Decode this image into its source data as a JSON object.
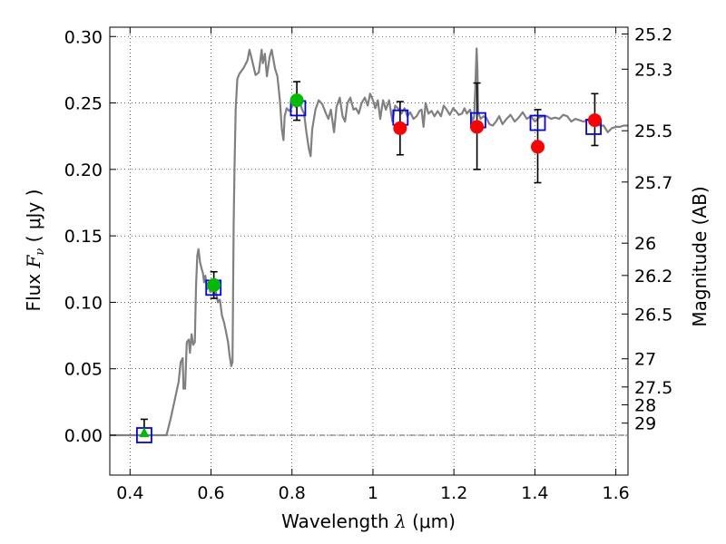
{
  "chart_data": {
    "type": "scatter",
    "xlabel": "Wavelength  λ (μm)",
    "ylabel": "Flux  F_ν  ( μJy )",
    "ylabel_parts": {
      "prefix": "Flux  ",
      "symbol": "F",
      "subscript": "ν",
      "suffix": "  ( μJy )"
    },
    "xlabel_parts": {
      "prefix": "Wavelength  ",
      "symbol": "λ",
      "suffix": " (μm)"
    },
    "y2label": "Magnitude (AB)",
    "xlim": [
      0.35,
      1.63
    ],
    "ylim": [
      -0.03,
      0.307
    ],
    "grid": true,
    "x_ticks": [
      0.4,
      0.6,
      0.8,
      1.0,
      1.2,
      1.4,
      1.6
    ],
    "x_tick_labels": [
      "0.4",
      "0.6",
      "0.8",
      "1",
      "1.2",
      "1.4",
      "1.6"
    ],
    "y_ticks": [
      0.0,
      0.05,
      0.1,
      0.15,
      0.2,
      0.25,
      0.3
    ],
    "y_tick_labels": [
      "0.00",
      "0.05",
      "0.10",
      "0.15",
      "0.20",
      "0.25",
      "0.30"
    ],
    "y2_ticks": [
      {
        "label": "25.2",
        "flux": 0.3019
      },
      {
        "label": "25.3",
        "flux": 0.2754
      },
      {
        "label": "25.5",
        "flux": 0.2291
      },
      {
        "label": "25.7",
        "flux": 0.1905
      },
      {
        "label": "26",
        "flux": 0.1445
      },
      {
        "label": "26.2",
        "flux": 0.1202
      },
      {
        "label": "26.5",
        "flux": 0.0912
      },
      {
        "label": "27",
        "flux": 0.0575
      },
      {
        "label": "27.5",
        "flux": 0.0363
      },
      {
        "label": "28",
        "flux": 0.0229
      },
      {
        "label": "29",
        "flux": 0.0091
      }
    ],
    "colors": {
      "spectrum": "#808080",
      "model_box": "#0000ff",
      "green_points": "#00bb00",
      "red_points": "#ff0000",
      "errorbar": "#000000",
      "zero_line": "#333333"
    },
    "spectrum": [
      [
        0.35,
        0.0
      ],
      [
        0.49,
        0.0
      ],
      [
        0.5,
        0.012
      ],
      [
        0.51,
        0.026
      ],
      [
        0.52,
        0.04
      ],
      [
        0.525,
        0.055
      ],
      [
        0.53,
        0.058
      ],
      [
        0.532,
        0.035
      ],
      [
        0.536,
        0.035
      ],
      [
        0.54,
        0.07
      ],
      [
        0.545,
        0.072
      ],
      [
        0.548,
        0.062
      ],
      [
        0.552,
        0.076
      ],
      [
        0.556,
        0.068
      ],
      [
        0.56,
        0.07
      ],
      [
        0.563,
        0.112
      ],
      [
        0.566,
        0.135
      ],
      [
        0.569,
        0.14
      ],
      [
        0.573,
        0.13
      ],
      [
        0.577,
        0.125
      ],
      [
        0.58,
        0.122
      ],
      [
        0.583,
        0.115
      ],
      [
        0.586,
        0.12
      ],
      [
        0.59,
        0.11
      ],
      [
        0.594,
        0.112
      ],
      [
        0.598,
        0.108
      ],
      [
        0.603,
        0.11
      ],
      [
        0.607,
        0.105
      ],
      [
        0.612,
        0.108
      ],
      [
        0.617,
        0.1
      ],
      [
        0.622,
        0.102
      ],
      [
        0.627,
        0.09
      ],
      [
        0.632,
        0.085
      ],
      [
        0.637,
        0.078
      ],
      [
        0.642,
        0.07
      ],
      [
        0.646,
        0.06
      ],
      [
        0.65,
        0.052
      ],
      [
        0.653,
        0.055
      ],
      [
        0.656,
        0.16
      ],
      [
        0.658,
        0.2
      ],
      [
        0.661,
        0.245
      ],
      [
        0.665,
        0.268
      ],
      [
        0.67,
        0.272
      ],
      [
        0.68,
        0.276
      ],
      [
        0.69,
        0.282
      ],
      [
        0.695,
        0.29
      ],
      [
        0.7,
        0.284
      ],
      [
        0.71,
        0.271
      ],
      [
        0.718,
        0.273
      ],
      [
        0.725,
        0.29
      ],
      [
        0.728,
        0.28
      ],
      [
        0.733,
        0.287
      ],
      [
        0.738,
        0.27
      ],
      [
        0.745,
        0.285
      ],
      [
        0.75,
        0.29
      ],
      [
        0.758,
        0.276
      ],
      [
        0.764,
        0.27
      ],
      [
        0.77,
        0.252
      ],
      [
        0.775,
        0.23
      ],
      [
        0.779,
        0.222
      ],
      [
        0.782,
        0.24
      ],
      [
        0.787,
        0.246
      ],
      [
        0.793,
        0.244
      ],
      [
        0.798,
        0.246
      ],
      [
        0.803,
        0.249
      ],
      [
        0.81,
        0.247
      ],
      [
        0.818,
        0.252
      ],
      [
        0.825,
        0.245
      ],
      [
        0.83,
        0.242
      ],
      [
        0.836,
        0.227
      ],
      [
        0.842,
        0.215
      ],
      [
        0.846,
        0.21
      ],
      [
        0.85,
        0.23
      ],
      [
        0.858,
        0.245
      ],
      [
        0.866,
        0.252
      ],
      [
        0.875,
        0.249
      ],
      [
        0.884,
        0.242
      ],
      [
        0.89,
        0.238
      ],
      [
        0.896,
        0.245
      ],
      [
        0.904,
        0.228
      ],
      [
        0.91,
        0.247
      ],
      [
        0.918,
        0.254
      ],
      [
        0.925,
        0.24
      ],
      [
        0.931,
        0.236
      ],
      [
        0.937,
        0.25
      ],
      [
        0.944,
        0.254
      ],
      [
        0.952,
        0.245
      ],
      [
        0.958,
        0.246
      ],
      [
        0.965,
        0.242
      ],
      [
        0.972,
        0.25
      ],
      [
        0.98,
        0.254
      ],
      [
        0.987,
        0.248
      ],
      [
        0.993,
        0.257
      ],
      [
        1.0,
        0.252
      ],
      [
        1.006,
        0.246
      ],
      [
        1.012,
        0.252
      ],
      [
        1.018,
        0.238
      ],
      [
        1.025,
        0.252
      ],
      [
        1.032,
        0.245
      ],
      [
        1.04,
        0.252
      ],
      [
        1.048,
        0.236
      ],
      [
        1.055,
        0.248
      ],
      [
        1.062,
        0.246
      ],
      [
        1.07,
        0.242
      ],
      [
        1.078,
        0.246
      ],
      [
        1.085,
        0.24
      ],
      [
        1.092,
        0.243
      ],
      [
        1.1,
        0.238
      ],
      [
        1.108,
        0.24
      ],
      [
        1.115,
        0.244
      ],
      [
        1.12,
        0.245
      ],
      [
        1.125,
        0.232
      ],
      [
        1.13,
        0.25
      ],
      [
        1.137,
        0.242
      ],
      [
        1.145,
        0.244
      ],
      [
        1.152,
        0.24
      ],
      [
        1.16,
        0.244
      ],
      [
        1.168,
        0.24
      ],
      [
        1.175,
        0.248
      ],
      [
        1.182,
        0.245
      ],
      [
        1.19,
        0.241
      ],
      [
        1.198,
        0.246
      ],
      [
        1.205,
        0.244
      ],
      [
        1.212,
        0.241
      ],
      [
        1.22,
        0.242
      ],
      [
        1.226,
        0.246
      ],
      [
        1.232,
        0.242
      ],
      [
        1.24,
        0.245
      ],
      [
        1.246,
        0.236
      ],
      [
        1.25,
        0.24
      ],
      [
        1.253,
        0.262
      ],
      [
        1.256,
        0.291
      ],
      [
        1.258,
        0.275
      ],
      [
        1.26,
        0.243
      ],
      [
        1.266,
        0.238
      ],
      [
        1.273,
        0.24
      ],
      [
        1.28,
        0.239
      ],
      [
        1.288,
        0.234
      ],
      [
        1.296,
        0.233
      ],
      [
        1.304,
        0.236
      ],
      [
        1.312,
        0.24
      ],
      [
        1.32,
        0.234
      ],
      [
        1.33,
        0.238
      ],
      [
        1.34,
        0.241
      ],
      [
        1.35,
        0.236
      ],
      [
        1.36,
        0.239
      ],
      [
        1.37,
        0.243
      ],
      [
        1.38,
        0.238
      ],
      [
        1.39,
        0.24
      ],
      [
        1.4,
        0.236
      ],
      [
        1.41,
        0.239
      ],
      [
        1.42,
        0.24
      ],
      [
        1.43,
        0.24
      ],
      [
        1.44,
        0.238
      ],
      [
        1.45,
        0.239
      ],
      [
        1.46,
        0.238
      ],
      [
        1.47,
        0.241
      ],
      [
        1.48,
        0.24
      ],
      [
        1.49,
        0.236
      ],
      [
        1.5,
        0.238
      ],
      [
        1.51,
        0.237
      ],
      [
        1.52,
        0.236
      ],
      [
        1.53,
        0.237
      ],
      [
        1.54,
        0.238
      ],
      [
        1.55,
        0.236
      ],
      [
        1.56,
        0.233
      ],
      [
        1.57,
        0.233
      ],
      [
        1.58,
        0.228
      ],
      [
        1.59,
        0.231
      ],
      [
        1.6,
        0.232
      ],
      [
        1.61,
        0.232
      ],
      [
        1.62,
        0.233
      ],
      [
        1.63,
        0.233
      ]
    ],
    "model_boxes": [
      {
        "x": 0.435,
        "y": 0.0
      },
      {
        "x": 0.606,
        "y": 0.111
      },
      {
        "x": 0.815,
        "y": 0.246
      },
      {
        "x": 1.068,
        "y": 0.239
      },
      {
        "x": 1.26,
        "y": 0.237
      },
      {
        "x": 1.407,
        "y": 0.235
      },
      {
        "x": 1.545,
        "y": 0.232
      }
    ],
    "detections": [
      {
        "x": 0.607,
        "y": 0.113,
        "yerr_low": 0.01,
        "yerr_high": 0.01,
        "color": "green"
      },
      {
        "x": 0.812,
        "y": 0.252,
        "yerr_low": 0.015,
        "yerr_high": 0.014,
        "color": "green"
      },
      {
        "x": 1.067,
        "y": 0.231,
        "yerr_low": 0.02,
        "yerr_high": 0.02,
        "color": "red"
      },
      {
        "x": 1.257,
        "y": 0.232,
        "yerr_low": 0.032,
        "yerr_high": 0.033,
        "color": "red"
      },
      {
        "x": 1.407,
        "y": 0.217,
        "yerr_low": 0.027,
        "yerr_high": 0.028,
        "color": "red"
      },
      {
        "x": 1.548,
        "y": 0.237,
        "yerr_low": 0.019,
        "yerr_high": 0.02,
        "color": "red"
      }
    ],
    "upper_limits": [
      {
        "x": 0.435,
        "y": 0.002,
        "yerr_low": 0.002,
        "yerr_high": 0.01,
        "color": "green"
      }
    ]
  }
}
